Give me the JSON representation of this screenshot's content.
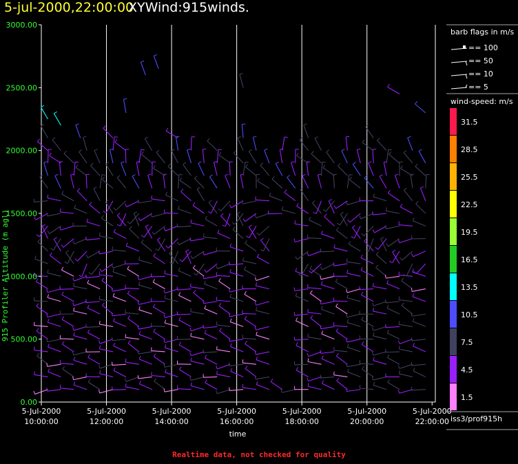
{
  "header": {
    "timestamp": "5-jul-2000,22:00:00",
    "product": "XYWind:915winds."
  },
  "footer_note": "Realtime data, not checked for quality",
  "source_label": "iss3/prof915h",
  "legend": {
    "barb_title": "barb flags in m/s",
    "barb_items": [
      "== 100",
      "== 50",
      "== 10",
      "== 5"
    ],
    "speed_title": "wind-speed: m/s",
    "speed_bins": [
      {
        "label": "31.5",
        "color": "#ff1a4d"
      },
      {
        "label": "28.5",
        "color": "#ff7f00"
      },
      {
        "label": "25.5",
        "color": "#ffb300"
      },
      {
        "label": "22.5",
        "color": "#ffff00"
      },
      {
        "label": "19.5",
        "color": "#99ff33"
      },
      {
        "label": "16.5",
        "color": "#22cc22"
      },
      {
        "label": "13.5",
        "color": "#00ffff"
      },
      {
        "label": "10.5",
        "color": "#4d4dff"
      },
      {
        "label": "7.5",
        "color": "#404060"
      },
      {
        "label": "4.5",
        "color": "#9a1fff"
      },
      {
        "label": "1.5",
        "color": "#ff80ff"
      }
    ]
  },
  "chart_data": {
    "type": "scatter",
    "title": "XYWind:915winds.",
    "xlabel": "time",
    "ylabel": "915 Profiler Altitude (m agl)",
    "ylim": [
      0,
      3000
    ],
    "yticks": [
      "0.00",
      "500.00",
      "1000.00",
      "1500.00",
      "2000.00",
      "2500.00",
      "3000.00"
    ],
    "xticks": [
      {
        "line1": "5-Jul-2000",
        "line2": "10:00:00"
      },
      {
        "line1": "5-Jul-2000",
        "line2": "12:00:00"
      },
      {
        "line1": "5-Jul-2000",
        "line2": "14:00:00"
      },
      {
        "line1": "5-Jul-2000",
        "line2": "16:00:00"
      },
      {
        "line1": "5-Jul-2000",
        "line2": "18:00:00"
      },
      {
        "line1": "5-Jul-2000",
        "line2": "20:00:00"
      },
      {
        "line1": "5-Jul-2000",
        "line2": "22:00:00"
      }
    ],
    "xlim_hours": [
      10.0,
      22.1
    ],
    "vertical_gridlines_hours": [
      12,
      14,
      16,
      18,
      20
    ],
    "altitude_gates_m": [
      100,
      200,
      300,
      400,
      500,
      600,
      700,
      800,
      900,
      1000,
      1100,
      1200,
      1300,
      1400,
      1500,
      1600,
      1700,
      1800,
      1900,
      2000,
      2100
    ],
    "time_columns_hours": [
      10.2,
      10.6,
      11.0,
      11.4,
      11.8,
      12.2,
      12.6,
      13.0,
      13.4,
      13.8,
      14.2,
      14.6,
      15.0,
      15.4,
      15.8,
      16.2,
      16.6,
      17.0,
      17.4,
      17.8,
      18.2,
      18.6,
      19.0,
      19.4,
      19.8,
      20.2,
      20.6,
      21.0,
      21.4,
      21.8
    ],
    "wind_barbs": [
      {
        "t": 10.2,
        "z": 2250,
        "dir": 330,
        "spd": 14
      },
      {
        "t": 10.6,
        "z": 2200,
        "dir": 330,
        "spd": 13
      },
      {
        "t": 11.2,
        "z": 2100,
        "dir": 340,
        "spd": 11
      },
      {
        "t": 12.6,
        "z": 2300,
        "dir": 350,
        "spd": 10
      },
      {
        "t": 13.2,
        "z": 2600,
        "dir": 340,
        "spd": 10
      },
      {
        "t": 13.6,
        "z": 2650,
        "dir": 340,
        "spd": 11
      },
      {
        "t": 16.2,
        "z": 2500,
        "dir": 345,
        "spd": 7
      },
      {
        "t": 21.0,
        "z": 2450,
        "dir": 300,
        "spd": 6
      },
      {
        "t": 21.8,
        "z": 2300,
        "dir": 310,
        "spd": 10
      }
    ]
  }
}
